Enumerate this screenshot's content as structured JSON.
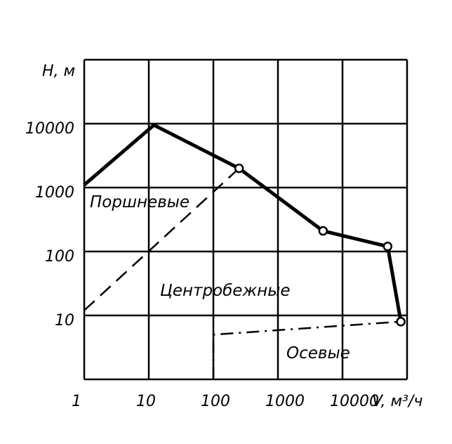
{
  "chart_data": {
    "type": "line",
    "scale": "log-log",
    "grid": true,
    "xlabel": "V, м³/ч",
    "ylabel": "H, м",
    "x_ticks": [
      "1",
      "10",
      "100",
      "1000",
      "10000"
    ],
    "y_ticks": [
      "10",
      "100",
      "1000",
      "10000"
    ],
    "xlim": [
      1,
      100000
    ],
    "ylim": [
      1,
      100000
    ],
    "series": [
      {
        "style": "solid-thick",
        "points": [
          [
            1,
            1100
          ],
          [
            12,
            9500
          ],
          [
            250,
            2000
          ],
          [
            5000,
            210
          ],
          [
            50000,
            120
          ],
          [
            80000,
            8
          ]
        ],
        "open_markers": [
          [
            250,
            2000
          ],
          [
            5000,
            210
          ],
          [
            50000,
            120
          ],
          [
            80000,
            8
          ]
        ]
      },
      {
        "style": "dashed",
        "points": [
          [
            1,
            12
          ],
          [
            12,
            120
          ],
          [
            250,
            2000
          ]
        ]
      },
      {
        "style": "dash-dot",
        "points": [
          [
            100,
            1
          ],
          [
            100,
            5
          ],
          [
            80000,
            8
          ]
        ]
      }
    ],
    "annotations": [
      "Поршневые",
      "Центробежные",
      "Осевые"
    ]
  }
}
